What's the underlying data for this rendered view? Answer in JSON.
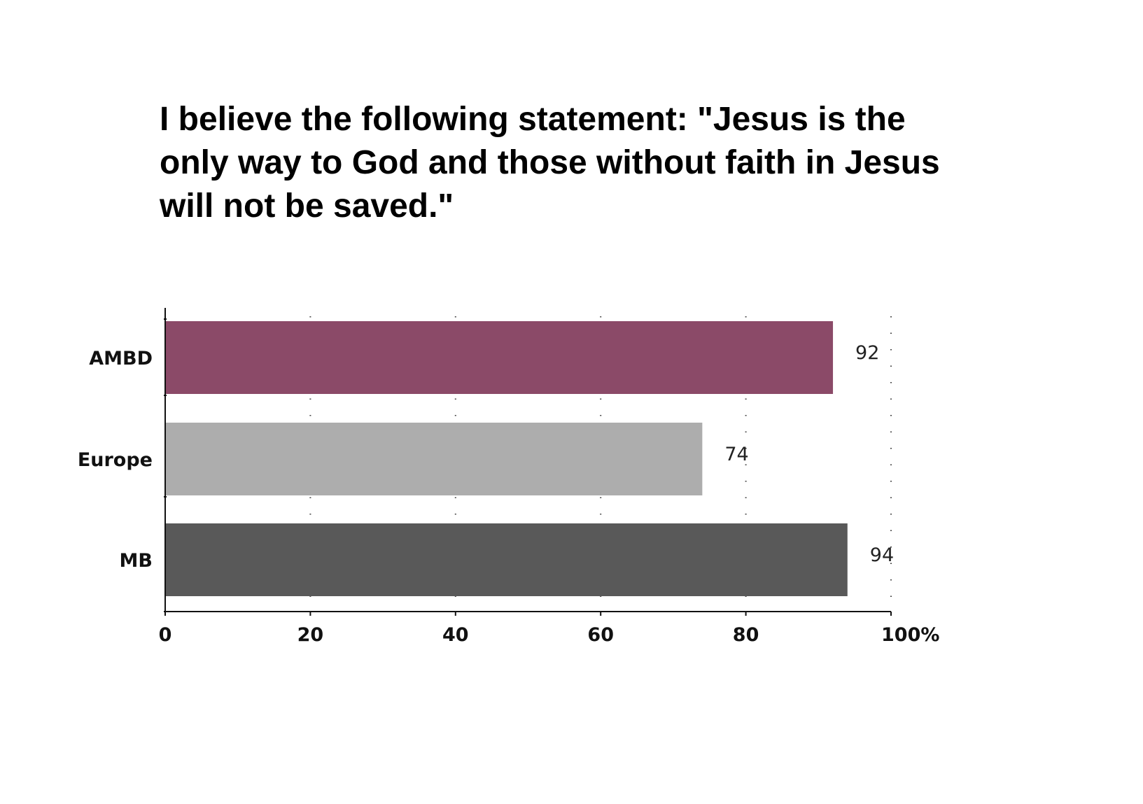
{
  "chart_data": {
    "type": "bar",
    "orientation": "horizontal",
    "title": "I believe the following statement: \"Jesus is the only way to God and those without faith in Jesus will not be saved.\"",
    "categories": [
      "AMBD",
      "Europe",
      "MB"
    ],
    "values": [
      92,
      74,
      94
    ],
    "colors": [
      "#8B4A68",
      "#ADADAD",
      "#595959"
    ],
    "xlim": [
      0,
      100
    ],
    "xticks": [
      "0",
      "20",
      "40",
      "60",
      "80",
      "100%"
    ],
    "xlabel": "",
    "ylabel": "",
    "grid": "vertical dotted",
    "legend": "none"
  }
}
